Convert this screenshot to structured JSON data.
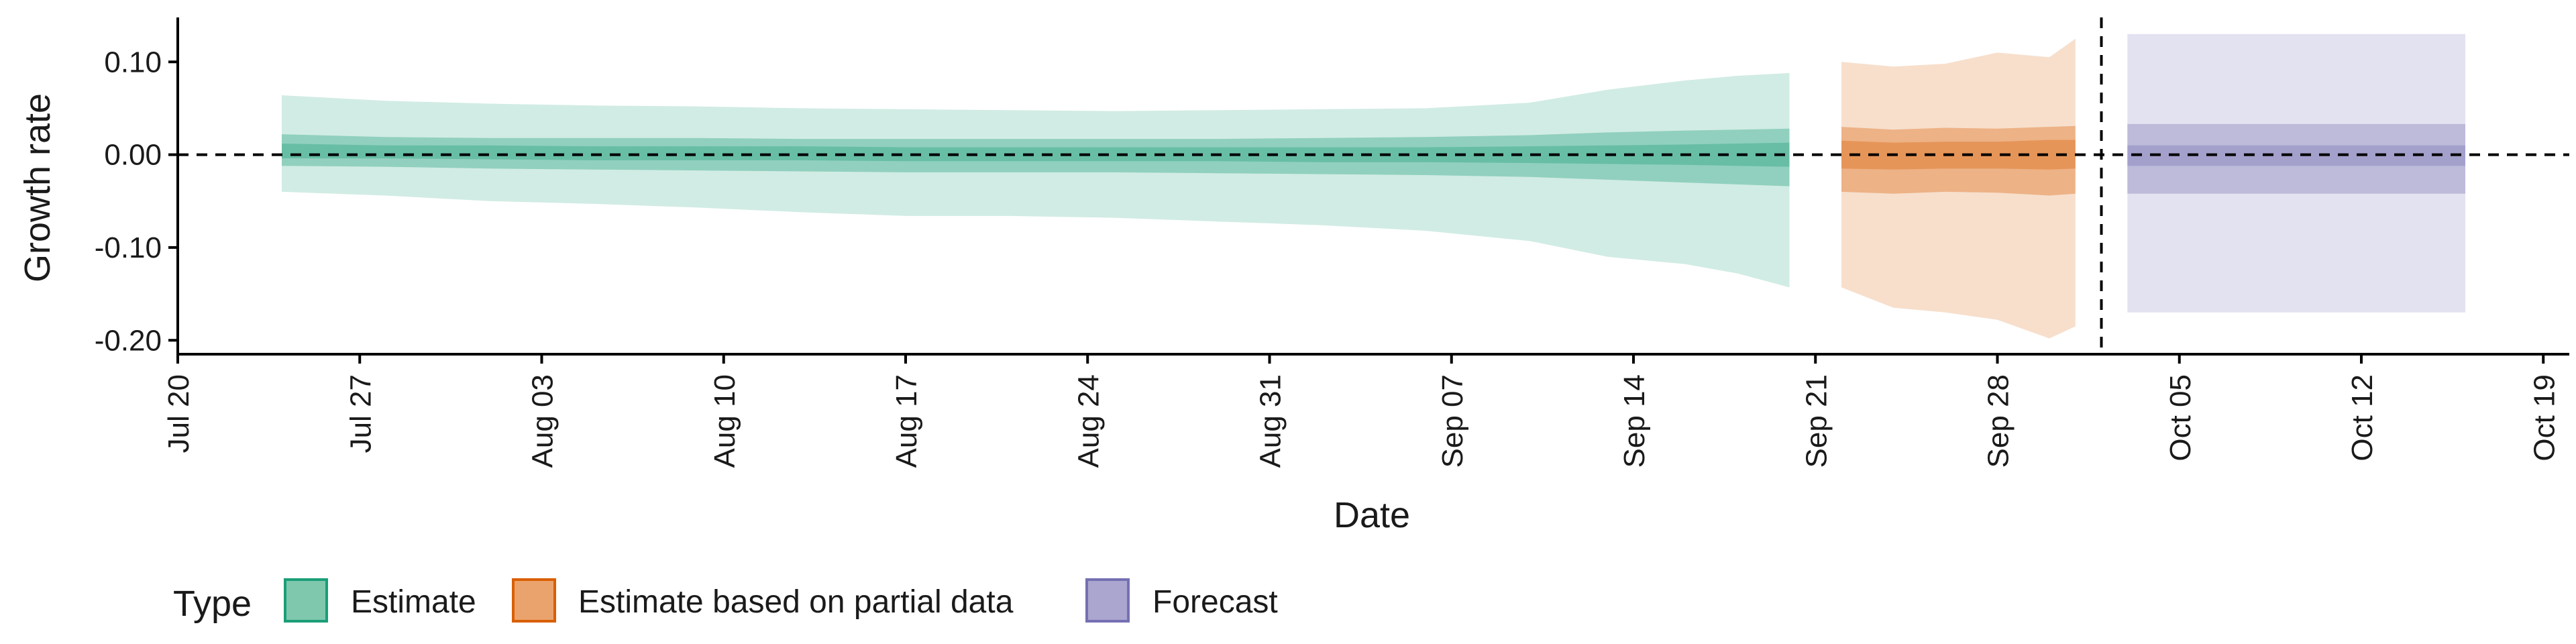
{
  "chart_data": {
    "type": "area",
    "xlabel": "Date",
    "ylabel": "Growth rate",
    "x_range": [
      "2020-07-20",
      "2020-10-20"
    ],
    "ylim": [
      -0.215,
      0.145
    ],
    "y_ticks": [
      0.1,
      0.0,
      -0.1,
      -0.2
    ],
    "y_tick_labels": [
      "0.10",
      "0.00",
      "-0.10",
      "-0.20"
    ],
    "x_ticks": [
      "2020-07-20",
      "2020-07-27",
      "2020-08-03",
      "2020-08-10",
      "2020-08-17",
      "2020-08-24",
      "2020-08-31",
      "2020-09-07",
      "2020-09-14",
      "2020-09-21",
      "2020-09-28",
      "2020-10-05",
      "2020-10-12",
      "2020-10-19"
    ],
    "x_tick_labels": [
      "Jul 20",
      "Jul 27",
      "Aug 03",
      "Aug 10",
      "Aug 17",
      "Aug 24",
      "Aug 31",
      "Sep 07",
      "Sep 14",
      "Sep 21",
      "Sep 28",
      "Oct 05",
      "Oct 12",
      "Oct 19"
    ],
    "reference_lines": {
      "horizontal_y": 0.0,
      "vertical_date": "2020-10-02"
    },
    "grid": false,
    "legend": {
      "title": "Type",
      "position": "bottom-left",
      "items": [
        {
          "label": "Estimate",
          "fill": "#7fc8ae",
          "stroke": "#1b9e77"
        },
        {
          "label": "Estimate based on partial data",
          "fill": "#eba36d",
          "stroke": "#d95f02"
        },
        {
          "label": "Forecast",
          "fill": "#aaa6cf",
          "stroke": "#7570b3"
        }
      ]
    },
    "series": [
      {
        "name": "Estimate",
        "color": "#1b9e77",
        "points": [
          {
            "date": "2020-07-24",
            "lo90": -0.04,
            "lo50": -0.012,
            "lo20": -0.004,
            "hi20": 0.012,
            "hi50": 0.022,
            "hi90": 0.064
          },
          {
            "date": "2020-07-28",
            "lo90": -0.044,
            "lo50": -0.013,
            "lo20": -0.004,
            "hi20": 0.01,
            "hi50": 0.019,
            "hi90": 0.058
          },
          {
            "date": "2020-08-01",
            "lo90": -0.05,
            "lo50": -0.015,
            "lo20": -0.005,
            "hi20": 0.01,
            "hi50": 0.018,
            "hi90": 0.055
          },
          {
            "date": "2020-08-05",
            "lo90": -0.053,
            "lo50": -0.016,
            "lo20": -0.006,
            "hi20": 0.009,
            "hi50": 0.018,
            "hi90": 0.053
          },
          {
            "date": "2020-08-09",
            "lo90": -0.057,
            "lo50": -0.017,
            "lo20": -0.006,
            "hi20": 0.009,
            "hi50": 0.018,
            "hi90": 0.052
          },
          {
            "date": "2020-08-13",
            "lo90": -0.062,
            "lo50": -0.018,
            "lo20": -0.006,
            "hi20": 0.009,
            "hi50": 0.017,
            "hi90": 0.05
          },
          {
            "date": "2020-08-17",
            "lo90": -0.066,
            "lo50": -0.019,
            "lo20": -0.007,
            "hi20": 0.008,
            "hi50": 0.017,
            "hi90": 0.049
          },
          {
            "date": "2020-08-21",
            "lo90": -0.066,
            "lo50": -0.019,
            "lo20": -0.007,
            "hi20": 0.008,
            "hi50": 0.017,
            "hi90": 0.048
          },
          {
            "date": "2020-08-25",
            "lo90": -0.068,
            "lo50": -0.019,
            "lo20": -0.007,
            "hi20": 0.008,
            "hi50": 0.017,
            "hi90": 0.047
          },
          {
            "date": "2020-08-29",
            "lo90": -0.072,
            "lo50": -0.02,
            "lo20": -0.007,
            "hi20": 0.008,
            "hi50": 0.017,
            "hi90": 0.048
          },
          {
            "date": "2020-09-02",
            "lo90": -0.076,
            "lo50": -0.021,
            "lo20": -0.008,
            "hi20": 0.008,
            "hi50": 0.018,
            "hi90": 0.049
          },
          {
            "date": "2020-09-06",
            "lo90": -0.082,
            "lo50": -0.022,
            "lo20": -0.008,
            "hi20": 0.008,
            "hi50": 0.019,
            "hi90": 0.05
          },
          {
            "date": "2020-09-10",
            "lo90": -0.093,
            "lo50": -0.024,
            "lo20": -0.009,
            "hi20": 0.009,
            "hi50": 0.021,
            "hi90": 0.056
          },
          {
            "date": "2020-09-13",
            "lo90": -0.11,
            "lo50": -0.027,
            "lo20": -0.01,
            "hi20": 0.01,
            "hi50": 0.024,
            "hi90": 0.07
          },
          {
            "date": "2020-09-16",
            "lo90": -0.118,
            "lo50": -0.03,
            "lo20": -0.011,
            "hi20": 0.011,
            "hi50": 0.026,
            "hi90": 0.08
          },
          {
            "date": "2020-09-18",
            "lo90": -0.128,
            "lo50": -0.032,
            "lo20": -0.012,
            "hi20": 0.012,
            "hi50": 0.027,
            "hi90": 0.085
          },
          {
            "date": "2020-09-20",
            "lo90": -0.143,
            "lo50": -0.034,
            "lo20": -0.013,
            "hi20": 0.013,
            "hi50": 0.028,
            "hi90": 0.088
          }
        ]
      },
      {
        "name": "Estimate based on partial data",
        "color": "#d95f02",
        "points": [
          {
            "date": "2020-09-22",
            "lo90": -0.143,
            "lo50": -0.04,
            "lo20": -0.015,
            "hi20": 0.015,
            "hi50": 0.03,
            "hi90": 0.1
          },
          {
            "date": "2020-09-24",
            "lo90": -0.165,
            "lo50": -0.042,
            "lo20": -0.016,
            "hi20": 0.013,
            "hi50": 0.027,
            "hi90": 0.095
          },
          {
            "date": "2020-09-26",
            "lo90": -0.17,
            "lo50": -0.04,
            "lo20": -0.015,
            "hi20": 0.014,
            "hi50": 0.029,
            "hi90": 0.098
          },
          {
            "date": "2020-09-28",
            "lo90": -0.178,
            "lo50": -0.041,
            "lo20": -0.015,
            "hi20": 0.014,
            "hi50": 0.028,
            "hi90": 0.11
          },
          {
            "date": "2020-09-30",
            "lo90": -0.198,
            "lo50": -0.044,
            "lo20": -0.016,
            "hi20": 0.016,
            "hi50": 0.03,
            "hi90": 0.105
          },
          {
            "date": "2020-10-01",
            "lo90": -0.185,
            "lo50": -0.042,
            "lo20": -0.015,
            "hi20": 0.016,
            "hi50": 0.031,
            "hi90": 0.125
          }
        ]
      },
      {
        "name": "Forecast",
        "color": "#7570b3",
        "points": [
          {
            "date": "2020-10-03",
            "lo90": -0.17,
            "lo50": -0.042,
            "lo20": -0.012,
            "hi20": 0.01,
            "hi50": 0.033,
            "hi90": 0.13
          },
          {
            "date": "2020-10-16",
            "lo90": -0.17,
            "lo50": -0.042,
            "lo20": -0.012,
            "hi20": 0.01,
            "hi50": 0.033,
            "hi90": 0.13
          }
        ]
      }
    ]
  }
}
